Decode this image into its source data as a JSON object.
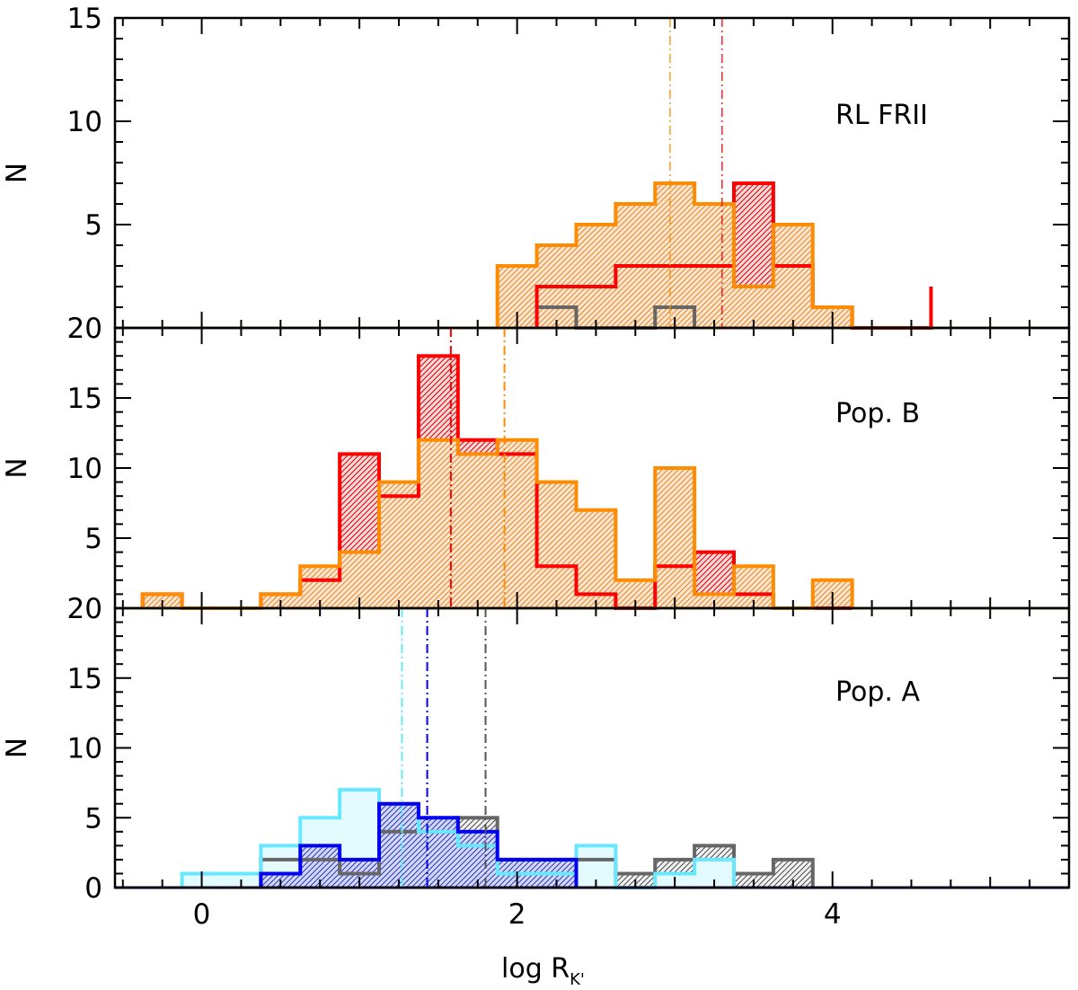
{
  "chart_data": {
    "type": "histogram",
    "x_axis": {
      "label": "log R",
      "label_subscript": "K'",
      "xlim": [
        -0.55,
        5.5
      ],
      "ticks": [
        0,
        2,
        4
      ]
    },
    "bin_width": 0.25,
    "panels": [
      {
        "id": "frii",
        "label": "RL FRII",
        "ylabel": "N",
        "ylim": [
          0,
          15
        ],
        "yticks": [
          5,
          10,
          15
        ],
        "series": [
          {
            "name": "gray",
            "color": "#666666",
            "hatch": true,
            "edges": [
              2.125,
              2.375,
              2.875,
              3.125
            ],
            "counts": [
              1,
              0,
              1
            ]
          },
          {
            "name": "red",
            "color": "#ff0000",
            "hatch": true,
            "edges": [
              2.125,
              2.375,
              2.625,
              2.875,
              3.125,
              3.375,
              3.625,
              3.875,
              4.125,
              4.375,
              4.625
            ],
            "counts": [
              2,
              2,
              3,
              3,
              3,
              7,
              3,
              1,
              0,
              0,
              2
            ]
          },
          {
            "name": "orange",
            "color": "#ff8c00",
            "hatch": true,
            "edges": [
              1.875,
              2.125,
              2.375,
              2.625,
              2.875,
              3.125,
              3.375,
              3.625,
              3.875,
              4.125
            ],
            "counts": [
              3,
              4,
              5,
              6,
              7,
              6,
              2,
              5,
              1
            ]
          }
        ],
        "medians": [
          {
            "color": "#ff8c00",
            "x": 2.97
          },
          {
            "color": "#ff0000",
            "x": 3.3
          }
        ]
      },
      {
        "id": "popB",
        "label": "Pop. B",
        "ylabel": "N",
        "ylim": [
          0,
          20
        ],
        "yticks": [
          5,
          10,
          15,
          20
        ],
        "series": [
          {
            "name": "red",
            "color": "#ff0000",
            "hatch": true,
            "edges": [
              -0.375,
              -0.125,
              0.125,
              0.375,
              0.625,
              0.875,
              1.125,
              1.375,
              1.625,
              1.875,
              2.125,
              2.375,
              2.625,
              2.875,
              3.125,
              3.375,
              3.625,
              3.875,
              4.125
            ],
            "counts": [
              1,
              0,
              0,
              1,
              2,
              11,
              8,
              18,
              12,
              11,
              3,
              1,
              0,
              3,
              4,
              1,
              0,
              0
            ]
          },
          {
            "name": "orange",
            "color": "#ff8c00",
            "hatch": true,
            "edges": [
              -0.375,
              -0.125,
              0.125,
              0.375,
              0.625,
              0.875,
              1.125,
              1.375,
              1.625,
              1.875,
              2.125,
              2.375,
              2.625,
              2.875,
              3.125,
              3.375,
              3.625,
              3.875,
              4.125
            ],
            "counts": [
              1,
              0,
              0,
              1,
              3,
              4,
              9,
              12,
              11,
              12,
              9,
              7,
              2,
              10,
              1,
              3,
              0,
              2
            ]
          }
        ],
        "medians": [
          {
            "color": "#ff0000",
            "x": 1.58
          },
          {
            "color": "#ff8c00",
            "x": 1.92
          }
        ]
      },
      {
        "id": "popA",
        "label": "Pop. A",
        "ylabel": "N",
        "ylim": [
          0,
          20
        ],
        "yticks": [
          0,
          5,
          10,
          15,
          20
        ],
        "series": [
          {
            "name": "gray",
            "color": "#666666",
            "hatch": true,
            "edges": [
              0.375,
              0.625,
              0.875,
              1.125,
              1.375,
              1.625,
              1.875,
              2.125,
              2.375,
              2.625,
              2.875,
              3.125,
              3.375,
              3.625,
              3.875
            ],
            "counts": [
              2,
              2,
              1,
              4,
              4,
              5,
              2,
              2,
              2,
              1,
              2,
              3,
              1,
              2
            ]
          },
          {
            "name": "cyan",
            "color": "#66e8ff",
            "hatch": false,
            "edges": [
              -0.125,
              0.125,
              0.375,
              0.625,
              0.875,
              1.125,
              1.375,
              1.625,
              1.875,
              2.125,
              2.375,
              2.625,
              2.875,
              3.125,
              3.375
            ],
            "counts": [
              1,
              1,
              3,
              5,
              7,
              6,
              4,
              3,
              1,
              1,
              3,
              0,
              1,
              2
            ]
          },
          {
            "name": "blue",
            "color": "#0000ee",
            "hatch": true,
            "edges": [
              0.375,
              0.625,
              0.875,
              1.125,
              1.375,
              1.625,
              1.875,
              2.125,
              2.375
            ],
            "counts": [
              1,
              3,
              2,
              6,
              5,
              4,
              2,
              2
            ]
          }
        ],
        "medians": [
          {
            "color": "#66e8ff",
            "x": 1.27
          },
          {
            "color": "#0000ee",
            "x": 1.43
          },
          {
            "color": "#555555",
            "x": 1.8
          }
        ]
      }
    ]
  }
}
